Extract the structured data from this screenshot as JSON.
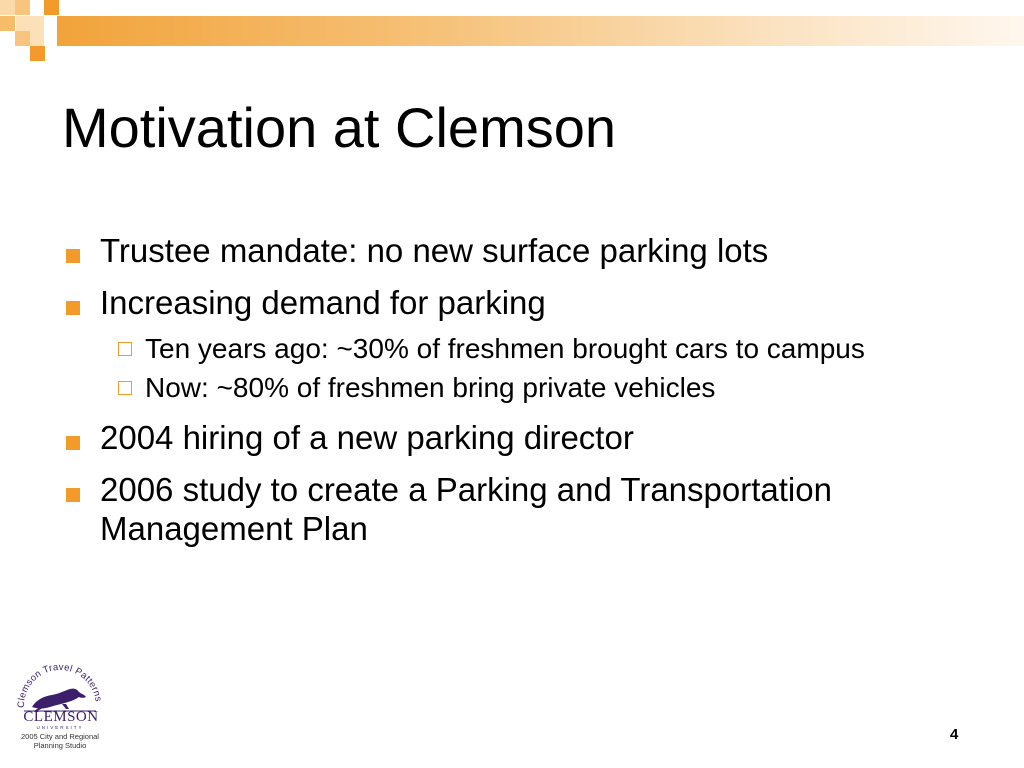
{
  "slide": {
    "title": "Motivation at Clemson",
    "page_number": "4",
    "accent_color": "#f29b2a",
    "bullets": [
      {
        "text": "Trustee mandate: no new surface parking lots",
        "subbullets": []
      },
      {
        "text": "Increasing demand for parking",
        "subbullets": [
          "Ten years ago: ~30% of freshmen brought cars to campus",
          "Now: ~80% of freshmen bring private vehicles"
        ]
      },
      {
        "text": "2004 hiring of a new parking director",
        "subbullets": []
      },
      {
        "text": "2006 study to create a Parking and Transportation Management Plan",
        "subbullets": []
      }
    ]
  },
  "logo": {
    "arc_text": "Clemson Travel Patterns",
    "wordmark": "CLEMSON",
    "subtitle": "UNIVERSITY",
    "caption_line1": "2005 City and Regional",
    "caption_line2": "Planning Studio",
    "color": "#3b1f6b"
  }
}
